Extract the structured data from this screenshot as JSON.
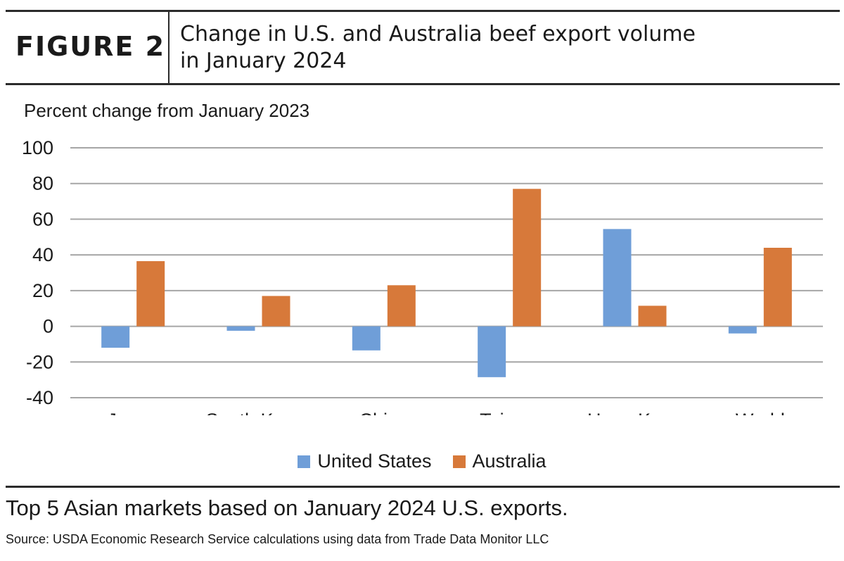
{
  "header": {
    "figure_label": "FIGURE 2",
    "title_line1": "Change in U.S. and Australia beef export volume",
    "title_line2": "in January 2024"
  },
  "caption": "Top 5 Asian markets based on January 2024 U.S. exports.",
  "source": "Source: USDA Economic Research Service calculations using data from Trade Data Monitor LLC",
  "chart_data": {
    "type": "bar",
    "title": "",
    "ylabel": "Percent change from January 2023",
    "xlabel": "",
    "categories": [
      "Japan",
      "South Korea",
      "China",
      "Taiwan",
      "Hong Kong",
      "World"
    ],
    "series": [
      {
        "name": "United States",
        "color": "#6f9ed8",
        "values": [
          -12,
          -2.5,
          -13.5,
          -28.5,
          54.5,
          -4
        ]
      },
      {
        "name": "Australia",
        "color": "#d7793a",
        "values": [
          36.5,
          17,
          23,
          77,
          11.5,
          44
        ]
      }
    ],
    "ylim": [
      -40,
      100
    ],
    "yticks": [
      100,
      80,
      60,
      40,
      20,
      0,
      -20,
      -40
    ],
    "grid": true,
    "legend_position": "bottom-center"
  }
}
